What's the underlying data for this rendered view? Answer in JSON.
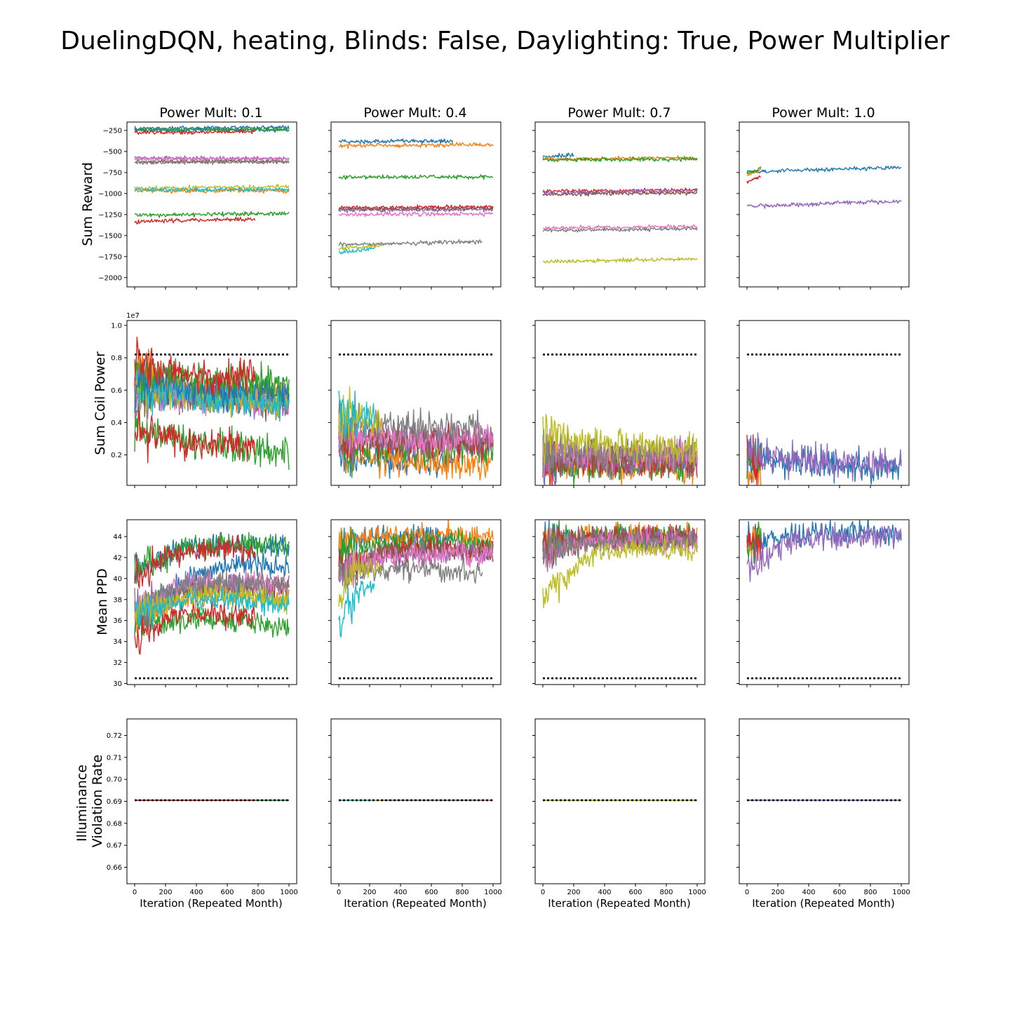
{
  "figure": {
    "title": "DuelingDQN, heating, Blinds: False, Daylighting: True, Power Multiplier",
    "column_titles": [
      "Power Mult: 0.1",
      "Power Mult: 0.4",
      "Power Mult: 0.7",
      "Power Mult: 1.0"
    ],
    "row_labels": [
      "Sum Reward",
      "Sum Coil Power",
      "Mean PPD",
      "Illuminance\nViolation Rate"
    ],
    "xlabel": "Iteration (Repeated Month)",
    "x_ticks": [
      0,
      200,
      400,
      600,
      800,
      1000
    ],
    "palette": [
      "#1f77b4",
      "#ff7f0e",
      "#2ca02c",
      "#d62728",
      "#9467bd",
      "#8c564b",
      "#e377c2",
      "#7f7f7f",
      "#bcbd22",
      "#17becf"
    ],
    "reference_color": "#000000"
  },
  "chart_data": {
    "type": "line",
    "xlim": [
      -50,
      1050
    ],
    "rows": [
      {
        "ylabel": "Sum Reward",
        "ylim": [
          -2110,
          -150
        ],
        "y_ticks": [
          -2000,
          -1750,
          -1500,
          -1250,
          -1000,
          -750,
          -500,
          -250
        ],
        "tick_labels": [
          "−2000",
          "−1750",
          "−1500",
          "−1250",
          "−1000",
          "−750",
          "−500",
          "−250"
        ],
        "offset_text": ""
      },
      {
        "ylabel": "Sum Coil Power",
        "ylim": [
          120000,
          10300000
        ],
        "y_ticks": [
          2000000,
          4000000,
          6000000,
          8000000,
          10000000
        ],
        "tick_labels": [
          "0.2",
          "0.4",
          "0.6",
          "0.8",
          "1.0"
        ],
        "offset_text": "1e7",
        "reference_line": 8200000
      },
      {
        "ylabel": "Mean PPD",
        "ylim": [
          29.9,
          45.6
        ],
        "y_ticks": [
          30,
          32,
          34,
          36,
          38,
          40,
          42,
          44
        ],
        "tick_labels": [
          "30",
          "32",
          "34",
          "36",
          "38",
          "40",
          "42",
          "44"
        ],
        "offset_text": "",
        "reference_line": 30.5
      },
      {
        "ylabel": "Illuminance Violation Rate",
        "ylim": [
          0.6525,
          0.7275
        ],
        "y_ticks": [
          0.66,
          0.67,
          0.68,
          0.69,
          0.7,
          0.71,
          0.72
        ],
        "tick_labels": [
          "0.66",
          "0.67",
          "0.68",
          "0.69",
          "0.70",
          "0.71",
          "0.72"
        ],
        "offset_text": "",
        "reference_line": 0.6905
      }
    ],
    "panels": [
      {
        "column": "Power Mult: 0.1",
        "series": [
          {
            "color": 0,
            "x_end": 1000,
            "reward": [
              -225,
              -215
            ],
            "power": [
              6.6,
              5.6,
              5.4
            ],
            "ppd": [
              36.0,
              40.0,
              41.5,
              41.0
            ],
            "illum": 0.6905
          },
          {
            "color": 1,
            "x_end": 1000,
            "reward": [
              -970,
              -965
            ],
            "power": [
              7.2,
              5.9,
              5.6
            ],
            "ppd": [
              36.0,
              38.0,
              38.5,
              38.0
            ],
            "illum": 0.6905
          },
          {
            "color": 2,
            "x_end": 1000,
            "reward": [
              -1255,
              -1235
            ],
            "power": [
              3.6,
              2.6,
              2.3
            ],
            "ppd": [
              35.5,
              36.0,
              36.0,
              35.5
            ],
            "illum": 0.6905
          },
          {
            "color": 3,
            "x_end": 780,
            "reward": [
              -1330,
              -1305
            ],
            "power": [
              3.5,
              2.7,
              2.5
            ],
            "ppd": [
              34.0,
              36.5,
              36.5,
              36.5
            ],
            "illum": 0.6905
          },
          {
            "color": 4,
            "x_end": 1000,
            "reward": [
              -580,
              -585
            ],
            "power": [
              6.0,
              5.4,
              5.2
            ],
            "ppd": [
              37.0,
              39.0,
              39.5,
              39.0
            ],
            "illum": 0.6905
          },
          {
            "color": 5,
            "x_end": 1000,
            "reward": [
              -620,
              -615
            ],
            "power": [
              5.8,
              5.5,
              5.4
            ],
            "ppd": [
              36.5,
              39.0,
              39.0,
              39.0
            ],
            "illum": 0.6905
          },
          {
            "color": 6,
            "x_end": 1000,
            "reward": [
              -590,
              -590
            ],
            "power": [
              5.9,
              5.5,
              5.4
            ],
            "ppd": [
              37.0,
              39.5,
              39.5,
              39.5
            ],
            "illum": 0.6905
          },
          {
            "color": 7,
            "x_end": 1000,
            "reward": [
              -630,
              -625
            ],
            "power": [
              5.8,
              5.4,
              5.2
            ],
            "ppd": [
              37.0,
              39.5,
              39.5,
              39.5
            ],
            "illum": 0.6905
          },
          {
            "color": 8,
            "x_end": 1000,
            "reward": [
              -935,
              -920
            ],
            "power": [
              6.2,
              5.6,
              5.4
            ],
            "ppd": [
              36.5,
              38.5,
              38.5,
              38.0
            ],
            "illum": 0.6905
          },
          {
            "color": 9,
            "x_end": 1000,
            "reward": [
              -955,
              -950
            ],
            "power": [
              6.2,
              5.5,
              5.3
            ],
            "ppd": [
              36.5,
              38.0,
              38.0,
              37.5
            ],
            "illum": 0.6905
          },
          {
            "color": 0,
            "x_end": 1000,
            "reward": [
              -250,
              -240
            ],
            "power": [
              6.5,
              6.0,
              5.8
            ],
            "ppd": [
              41.0,
              43.0,
              43.5,
              43.0
            ],
            "illum": 0.6905
          },
          {
            "color": 2,
            "x_end": 1000,
            "reward": [
              -240,
              -235
            ],
            "power": [
              7.2,
              6.6,
              6.5
            ],
            "ppd": [
              40.5,
              43.0,
              43.3,
              43.2
            ],
            "illum": 0.6905
          },
          {
            "color": 3,
            "x_end": 780,
            "reward": [
              -275,
              -265
            ],
            "power": [
              7.5,
              6.8,
              6.8
            ],
            "ppd": [
              40.0,
              42.5,
              42.8,
              42.8
            ],
            "illum": 0.6905
          }
        ]
      },
      {
        "column": "Power Mult: 0.4",
        "series": [
          {
            "color": 0,
            "x_end": 740,
            "reward": [
              -380,
              -375
            ],
            "power": [
              2.0,
              1.7,
              1.6
            ],
            "ppd": [
              43.2,
              44.0,
              44.0,
              44.0
            ],
            "illum": 0.6905
          },
          {
            "color": 1,
            "x_end": 1000,
            "reward": [
              -430,
              -420
            ],
            "power": [
              2.0,
              1.6,
              1.5
            ],
            "ppd": [
              43.5,
              44.0,
              44.2,
              44.1
            ],
            "illum": 0.6905
          },
          {
            "color": 2,
            "x_end": 1000,
            "reward": [
              -810,
              -800
            ],
            "power": [
              2.6,
              2.3,
              2.3
            ],
            "ppd": [
              42.5,
              43.3,
              43.5,
              43.5
            ],
            "illum": 0.6905
          },
          {
            "color": 3,
            "x_end": 1000,
            "reward": [
              -1170,
              -1160
            ],
            "power": [
              3.0,
              2.8,
              2.7
            ],
            "ppd": [
              41.0,
              42.6,
              42.8,
              42.5
            ],
            "illum": 0.6905
          },
          {
            "color": 4,
            "x_end": 1000,
            "reward": [
              -1200,
              -1190
            ],
            "power": [
              3.1,
              2.9,
              2.8
            ],
            "ppd": [
              41.0,
              42.4,
              42.5,
              42.3
            ],
            "illum": 0.6905
          },
          {
            "color": 5,
            "x_end": 1000,
            "reward": [
              -1185,
              -1175
            ],
            "power": [
              3.1,
              2.9,
              2.8
            ],
            "ppd": [
              41.0,
              42.5,
              42.6,
              42.4
            ],
            "illum": 0.6905
          },
          {
            "color": 6,
            "x_end": 1000,
            "reward": [
              -1250,
              -1240
            ],
            "power": [
              3.3,
              3.0,
              3.0
            ],
            "ppd": [
              40.5,
              42.2,
              42.3,
              42.2
            ],
            "illum": 0.6905
          },
          {
            "color": 7,
            "x_end": 930,
            "reward": [
              -1610,
              -1570
            ],
            "power": [
              4.0,
              3.8,
              3.7
            ],
            "ppd": [
              40.0,
              41.0,
              40.8,
              40.5
            ],
            "illum": 0.6905
          },
          {
            "color": 8,
            "x_end": 280,
            "reward": [
              -1650,
              -1620
            ],
            "power": [
              4.5,
              4.2,
              4.0
            ],
            "ppd": [
              38.0,
              41.0,
              41.0,
              41.0
            ],
            "illum": 0.6905
          },
          {
            "color": 9,
            "x_end": 230,
            "reward": [
              -1700,
              -1650
            ],
            "power": [
              4.8,
              4.5,
              4.3
            ],
            "ppd": [
              35.5,
              38.0,
              39.0,
              39.0
            ],
            "illum": 0.6905
          }
        ]
      },
      {
        "column": "Power Mult: 0.7",
        "series": [
          {
            "color": 0,
            "x_end": 200,
            "reward": [
              -560,
              -540
            ],
            "power": [
              1.6,
              1.4,
              1.4
            ],
            "ppd": [
              43.5,
              44.0,
              44.0,
              44.0
            ],
            "illum": 0.6905
          },
          {
            "color": 1,
            "x_end": 1000,
            "reward": [
              -590,
              -575
            ],
            "power": [
              1.5,
              1.3,
              1.3
            ],
            "ppd": [
              43.5,
              44.1,
              44.2,
              44.2
            ],
            "illum": 0.6905
          },
          {
            "color": 2,
            "x_end": 1000,
            "reward": [
              -600,
              -590
            ],
            "power": [
              1.4,
              1.3,
              1.3
            ],
            "ppd": [
              43.5,
              44.0,
              44.1,
              44.1
            ],
            "illum": 0.6905
          },
          {
            "color": 3,
            "x_end": 1000,
            "reward": [
              -975,
              -955
            ],
            "power": [
              1.8,
              1.6,
              1.6
            ],
            "ppd": [
              43.0,
              43.8,
              43.9,
              43.9
            ],
            "illum": 0.6905
          },
          {
            "color": 4,
            "x_end": 1000,
            "reward": [
              -990,
              -970
            ],
            "power": [
              1.8,
              1.6,
              1.6
            ],
            "ppd": [
              43.0,
              43.8,
              43.8,
              43.8
            ],
            "illum": 0.6905
          },
          {
            "color": 5,
            "x_end": 1000,
            "reward": [
              -1010,
              -990
            ],
            "power": [
              1.9,
              1.7,
              1.7
            ],
            "ppd": [
              43.0,
              43.7,
              43.8,
              43.7
            ],
            "illum": 0.6905
          },
          {
            "color": 6,
            "x_end": 1000,
            "reward": [
              -1410,
              -1390
            ],
            "power": [
              2.2,
              2.0,
              2.0
            ],
            "ppd": [
              42.5,
              43.5,
              43.5,
              43.5
            ],
            "illum": 0.6905
          },
          {
            "color": 7,
            "x_end": 1000,
            "reward": [
              -1440,
              -1420
            ],
            "power": [
              2.3,
              2.1,
              2.0
            ],
            "ppd": [
              42.5,
              43.5,
              43.4,
              43.4
            ],
            "illum": 0.6905
          },
          {
            "color": 8,
            "x_end": 1000,
            "reward": [
              -1810,
              -1780
            ],
            "power": [
              3.2,
              2.6,
              2.3
            ],
            "ppd": [
              38.5,
              42.5,
              42.8,
              42.8
            ],
            "illum": 0.6905
          }
        ]
      },
      {
        "column": "Power Mult: 1.0",
        "series": [
          {
            "color": 0,
            "x_end": 1000,
            "reward": [
              -740,
              -690
            ],
            "power": [
              1.8,
              1.4,
              1.3
            ],
            "ppd": [
              43.5,
              44.2,
              44.3,
              44.3
            ],
            "illum": 0.6905
          },
          {
            "color": 1,
            "x_end": 90,
            "reward": [
              -780,
              -720
            ],
            "power": [
              1.6,
              1.4,
              1.4
            ],
            "ppd": [
              43.0,
              44.0,
              44.0,
              44.0
            ],
            "illum": 0.6905
          },
          {
            "color": 2,
            "x_end": 90,
            "reward": [
              -760,
              -700
            ],
            "power": [
              1.7,
              1.5,
              1.5
            ],
            "ppd": [
              43.0,
              44.0,
              44.0,
              44.0
            ],
            "illum": 0.6905
          },
          {
            "color": 3,
            "x_end": 90,
            "reward": [
              -860,
              -790
            ],
            "power": [
              1.8,
              1.5,
              1.5
            ],
            "ppd": [
              42.8,
              43.8,
              43.8,
              43.8
            ],
            "illum": 0.6905
          },
          {
            "color": 4,
            "x_end": 1000,
            "reward": [
              -1150,
              -1090
            ],
            "power": [
              2.0,
              1.5,
              1.4
            ],
            "ppd": [
              41.0,
              43.8,
              44.0,
              44.0
            ],
            "illum": 0.6905
          }
        ]
      }
    ]
  }
}
